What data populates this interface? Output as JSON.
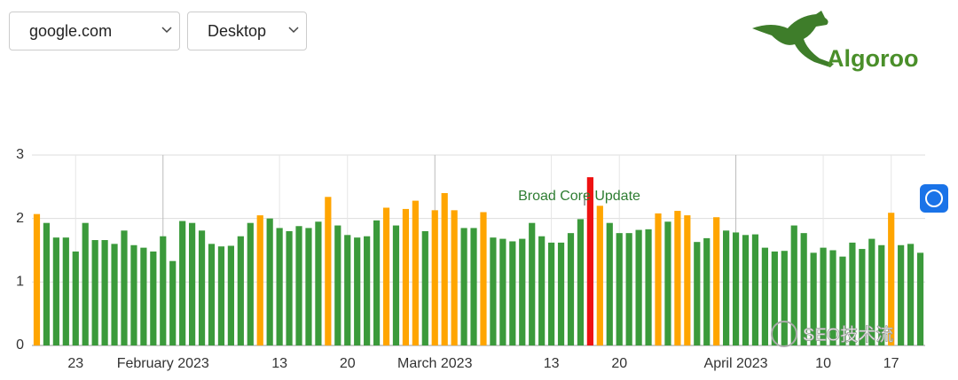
{
  "controls": {
    "domain": "google.com",
    "device": "Desktop"
  },
  "logo": "Algoroo",
  "watermark": "SEO技术流",
  "chart_data": {
    "type": "bar",
    "annotation": "Broad Core Update",
    "categories": [
      null,
      null,
      null,
      null,
      "23",
      null,
      null,
      null,
      null,
      null,
      null,
      null,
      null,
      "February 2023",
      null,
      null,
      null,
      null,
      null,
      null,
      null,
      null,
      null,
      null,
      null,
      "13",
      null,
      null,
      null,
      null,
      null,
      null,
      "20",
      null,
      null,
      null,
      null,
      null,
      null,
      null,
      null,
      "March 2023",
      null,
      null,
      null,
      null,
      null,
      null,
      null,
      null,
      null,
      null,
      null,
      "13",
      null,
      null,
      null,
      null,
      null,
      null,
      "20",
      null,
      null,
      null,
      null,
      null,
      null,
      null,
      null,
      null,
      null,
      null,
      "April 2023",
      null,
      null,
      null,
      null,
      null,
      null,
      null,
      null,
      "10",
      null,
      null,
      null,
      null,
      null,
      null,
      "17",
      null,
      null,
      null
    ],
    "values": [
      2.07,
      1.93,
      1.7,
      1.7,
      1.48,
      1.93,
      1.66,
      1.66,
      1.6,
      1.81,
      1.58,
      1.54,
      1.48,
      1.72,
      1.33,
      1.96,
      1.93,
      1.81,
      1.6,
      1.56,
      1.57,
      1.72,
      1.93,
      2.05,
      2.0,
      1.85,
      1.8,
      1.88,
      1.85,
      1.95,
      2.34,
      1.89,
      1.74,
      1.7,
      1.72,
      1.97,
      2.17,
      1.89,
      2.15,
      2.28,
      1.8,
      2.13,
      2.4,
      2.13,
      1.85,
      1.85,
      2.1,
      1.7,
      1.68,
      1.64,
      1.68,
      1.93,
      1.72,
      1.62,
      1.62,
      1.77,
      1.99,
      2.65,
      2.2,
      1.93,
      1.77,
      1.77,
      1.82,
      1.83,
      2.08,
      1.95,
      2.12,
      2.05,
      1.63,
      1.69,
      2.02,
      1.81,
      1.78,
      1.74,
      1.75,
      1.54,
      1.48,
      1.49,
      1.89,
      1.77,
      1.46,
      1.54,
      1.5,
      1.4,
      1.62,
      1.52,
      1.68,
      1.58,
      2.09,
      1.58,
      1.6,
      1.46
    ],
    "colors": [
      "#ffa500",
      "#3b9a3b",
      "#3b9a3b",
      "#3b9a3b",
      "#3b9a3b",
      "#3b9a3b",
      "#3b9a3b",
      "#3b9a3b",
      "#3b9a3b",
      "#3b9a3b",
      "#3b9a3b",
      "#3b9a3b",
      "#3b9a3b",
      "#3b9a3b",
      "#3b9a3b",
      "#3b9a3b",
      "#3b9a3b",
      "#3b9a3b",
      "#3b9a3b",
      "#3b9a3b",
      "#3b9a3b",
      "#3b9a3b",
      "#3b9a3b",
      "#ffa500",
      "#3b9a3b",
      "#3b9a3b",
      "#3b9a3b",
      "#3b9a3b",
      "#3b9a3b",
      "#3b9a3b",
      "#ffa500",
      "#3b9a3b",
      "#3b9a3b",
      "#3b9a3b",
      "#3b9a3b",
      "#3b9a3b",
      "#ffa500",
      "#3b9a3b",
      "#ffa500",
      "#ffa500",
      "#3b9a3b",
      "#ffa500",
      "#ffa500",
      "#ffa500",
      "#3b9a3b",
      "#3b9a3b",
      "#ffa500",
      "#3b9a3b",
      "#3b9a3b",
      "#3b9a3b",
      "#3b9a3b",
      "#3b9a3b",
      "#3b9a3b",
      "#3b9a3b",
      "#3b9a3b",
      "#3b9a3b",
      "#3b9a3b",
      "#ee1111",
      "#ffa500",
      "#3b9a3b",
      "#3b9a3b",
      "#3b9a3b",
      "#3b9a3b",
      "#3b9a3b",
      "#ffa500",
      "#3b9a3b",
      "#ffa500",
      "#ffa500",
      "#3b9a3b",
      "#3b9a3b",
      "#ffa500",
      "#3b9a3b",
      "#3b9a3b",
      "#3b9a3b",
      "#3b9a3b",
      "#3b9a3b",
      "#3b9a3b",
      "#3b9a3b",
      "#3b9a3b",
      "#3b9a3b",
      "#3b9a3b",
      "#3b9a3b",
      "#3b9a3b",
      "#3b9a3b",
      "#3b9a3b",
      "#3b9a3b",
      "#3b9a3b",
      "#3b9a3b",
      "#ffa500",
      "#3b9a3b",
      "#3b9a3b",
      "#3b9a3b"
    ],
    "ylim": [
      0,
      3
    ],
    "yticks": [
      0,
      1,
      2,
      3
    ],
    "grid": true
  }
}
